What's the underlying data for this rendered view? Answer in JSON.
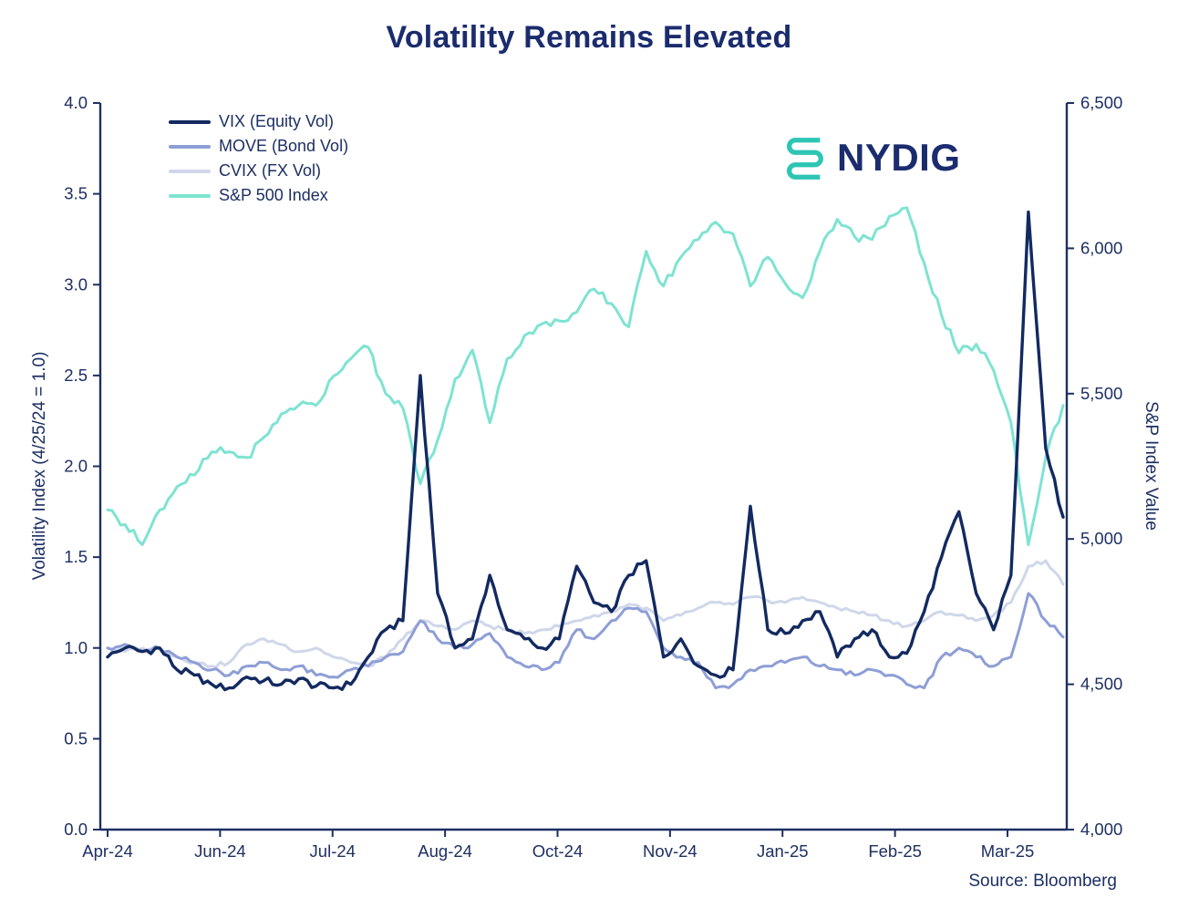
{
  "branding": {
    "logo_text": "NYDIG",
    "logo_color": "#2dc5b4",
    "text_color": "#1b2c6e"
  },
  "footer": {
    "source": "Source: Bloomberg"
  },
  "style": {
    "axis_color": "#1d2f63",
    "background": "#ffffff"
  },
  "chart_data": {
    "type": "line",
    "title": "Volatility Remains Elevated",
    "legend_position": "top-left-inside",
    "grid": false,
    "left_axis": {
      "label": "Volatility Index  (4/25/24 = 1.0)",
      "min": 0.0,
      "max": 4.0,
      "ticks": [
        "0.0",
        "0.5",
        "1.0",
        "1.5",
        "2.0",
        "2.5",
        "3.0",
        "3.5",
        "4.0"
      ]
    },
    "right_axis": {
      "label": "S&P Index Value",
      "min": 4000,
      "max": 6500,
      "ticks": [
        "4,000",
        "4,500",
        "5,000",
        "5,500",
        "6,000",
        "6,500"
      ]
    },
    "x_ticks": [
      "Apr-24",
      "Jun-24",
      "Jul-24",
      "Aug-24",
      "Oct-24",
      "Nov-24",
      "Jan-25",
      "Feb-25",
      "Mar-25"
    ],
    "x": [
      "2024-04-01",
      "2024-04-08",
      "2024-04-15",
      "2024-04-22",
      "2024-04-29",
      "2024-05-06",
      "2024-05-13",
      "2024-05-20",
      "2024-05-27",
      "2024-06-03",
      "2024-06-10",
      "2024-06-17",
      "2024-06-24",
      "2024-07-01",
      "2024-07-08",
      "2024-07-15",
      "2024-07-22",
      "2024-07-29",
      "2024-08-05",
      "2024-08-12",
      "2024-08-19",
      "2024-08-26",
      "2024-09-02",
      "2024-09-09",
      "2024-09-16",
      "2024-09-23",
      "2024-09-30",
      "2024-10-07",
      "2024-10-14",
      "2024-10-21",
      "2024-10-28",
      "2024-11-04",
      "2024-11-11",
      "2024-11-18",
      "2024-11-25",
      "2024-12-02",
      "2024-12-09",
      "2024-12-16",
      "2024-12-23",
      "2024-12-30",
      "2025-01-06",
      "2025-01-13",
      "2025-01-20",
      "2025-01-27",
      "2025-02-03",
      "2025-02-10",
      "2025-02-17",
      "2025-02-24",
      "2025-03-03",
      "2025-03-10",
      "2025-03-17",
      "2025-03-24",
      "2025-03-31",
      "2025-04-07",
      "2025-04-14",
      "2025-04-21"
    ],
    "series": [
      {
        "name": "VIX (Equity Vol)",
        "color": "#132a60",
        "axis": "left",
        "width": 3.4,
        "values": [
          0.95,
          1.0,
          0.98,
          1.0,
          0.88,
          0.85,
          0.8,
          0.78,
          0.84,
          0.82,
          0.8,
          0.83,
          0.79,
          0.78,
          0.8,
          0.95,
          1.1,
          1.15,
          2.5,
          1.3,
          1.0,
          1.05,
          1.4,
          1.1,
          1.05,
          1.0,
          1.05,
          1.45,
          1.25,
          1.2,
          1.4,
          1.48,
          0.95,
          1.05,
          0.9,
          0.85,
          0.88,
          1.78,
          1.1,
          1.08,
          1.15,
          1.2,
          0.95,
          1.05,
          1.1,
          0.95,
          0.97,
          1.2,
          1.5,
          1.75,
          1.3,
          1.1,
          1.4,
          3.4,
          2.1,
          1.72
        ]
      },
      {
        "name": "MOVE (Bond Vol)",
        "color": "#8e9ed6",
        "axis": "left",
        "width": 3.0,
        "values": [
          1.0,
          1.02,
          0.98,
          1.0,
          0.95,
          0.92,
          0.88,
          0.85,
          0.9,
          0.92,
          0.88,
          0.9,
          0.85,
          0.84,
          0.88,
          0.9,
          0.95,
          0.98,
          1.15,
          1.05,
          1.0,
          1.02,
          1.08,
          0.95,
          0.9,
          0.88,
          0.92,
          1.1,
          1.05,
          1.15,
          1.22,
          1.2,
          1.0,
          0.95,
          0.92,
          0.78,
          0.8,
          0.88,
          0.9,
          0.92,
          0.95,
          0.9,
          0.88,
          0.85,
          0.88,
          0.85,
          0.8,
          0.78,
          0.95,
          1.0,
          0.95,
          0.9,
          0.95,
          1.3,
          1.15,
          1.06
        ]
      },
      {
        "name": "CVIX (FX Vol)",
        "color": "#d0d7ea",
        "axis": "left",
        "width": 3.0,
        "values": [
          1.0,
          0.98,
          1.0,
          1.0,
          0.95,
          0.92,
          0.9,
          0.92,
          1.02,
          1.05,
          1.02,
          0.98,
          1.0,
          0.95,
          0.92,
          0.9,
          0.95,
          1.05,
          1.15,
          1.12,
          1.1,
          1.15,
          1.12,
          1.1,
          1.08,
          1.1,
          1.12,
          1.15,
          1.18,
          1.2,
          1.24,
          1.22,
          1.15,
          1.18,
          1.22,
          1.25,
          1.24,
          1.28,
          1.26,
          1.25,
          1.28,
          1.25,
          1.22,
          1.2,
          1.18,
          1.15,
          1.12,
          1.15,
          1.2,
          1.18,
          1.15,
          1.18,
          1.25,
          1.45,
          1.48,
          1.35
        ]
      },
      {
        "name": "S&P 500 Index",
        "color": "#7ee3d2",
        "axis": "right",
        "width": 3.0,
        "values": [
          5100,
          5050,
          4980,
          5100,
          5180,
          5220,
          5300,
          5300,
          5280,
          5350,
          5430,
          5460,
          5460,
          5560,
          5620,
          5660,
          5500,
          5450,
          5190,
          5340,
          5550,
          5650,
          5400,
          5620,
          5700,
          5740,
          5750,
          5780,
          5860,
          5810,
          5730,
          5990,
          5870,
          5970,
          6030,
          6090,
          6050,
          5870,
          5970,
          5880,
          5830,
          5990,
          6100,
          6040,
          6030,
          6110,
          6140,
          5950,
          5770,
          5640,
          5670,
          5580,
          5400,
          4980,
          5280,
          5460
        ]
      }
    ]
  }
}
